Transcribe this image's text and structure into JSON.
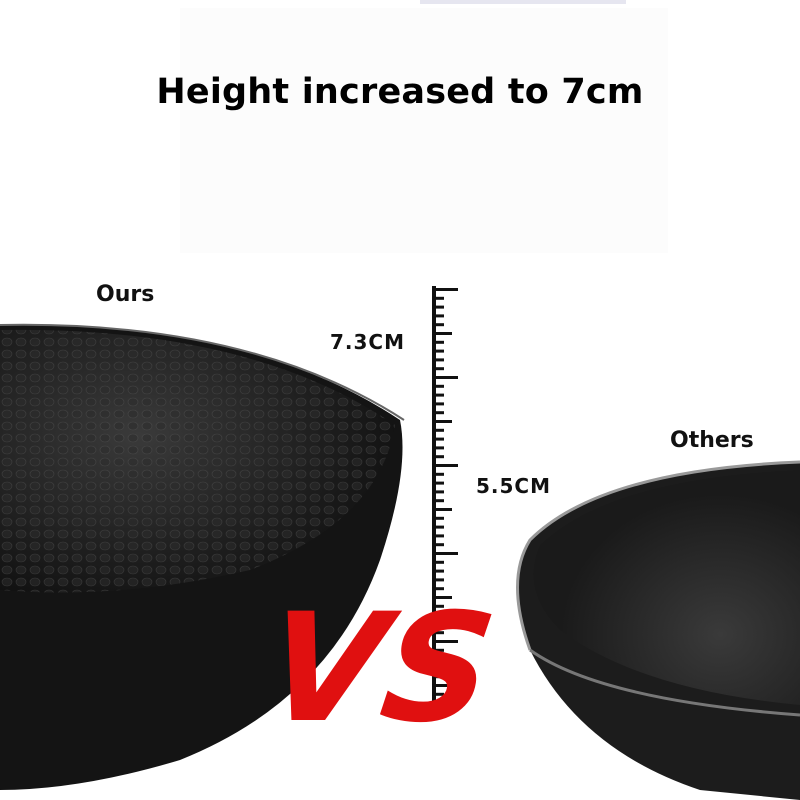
{
  "headline": "Height increased to 7cm",
  "labels": {
    "ours": "Ours",
    "others": "Others",
    "ours_height": "7.3CM",
    "others_height": "5.5CM",
    "versus": "VS"
  },
  "colors": {
    "pan": "#111111",
    "versus": "#e01010",
    "text": "#000000"
  }
}
